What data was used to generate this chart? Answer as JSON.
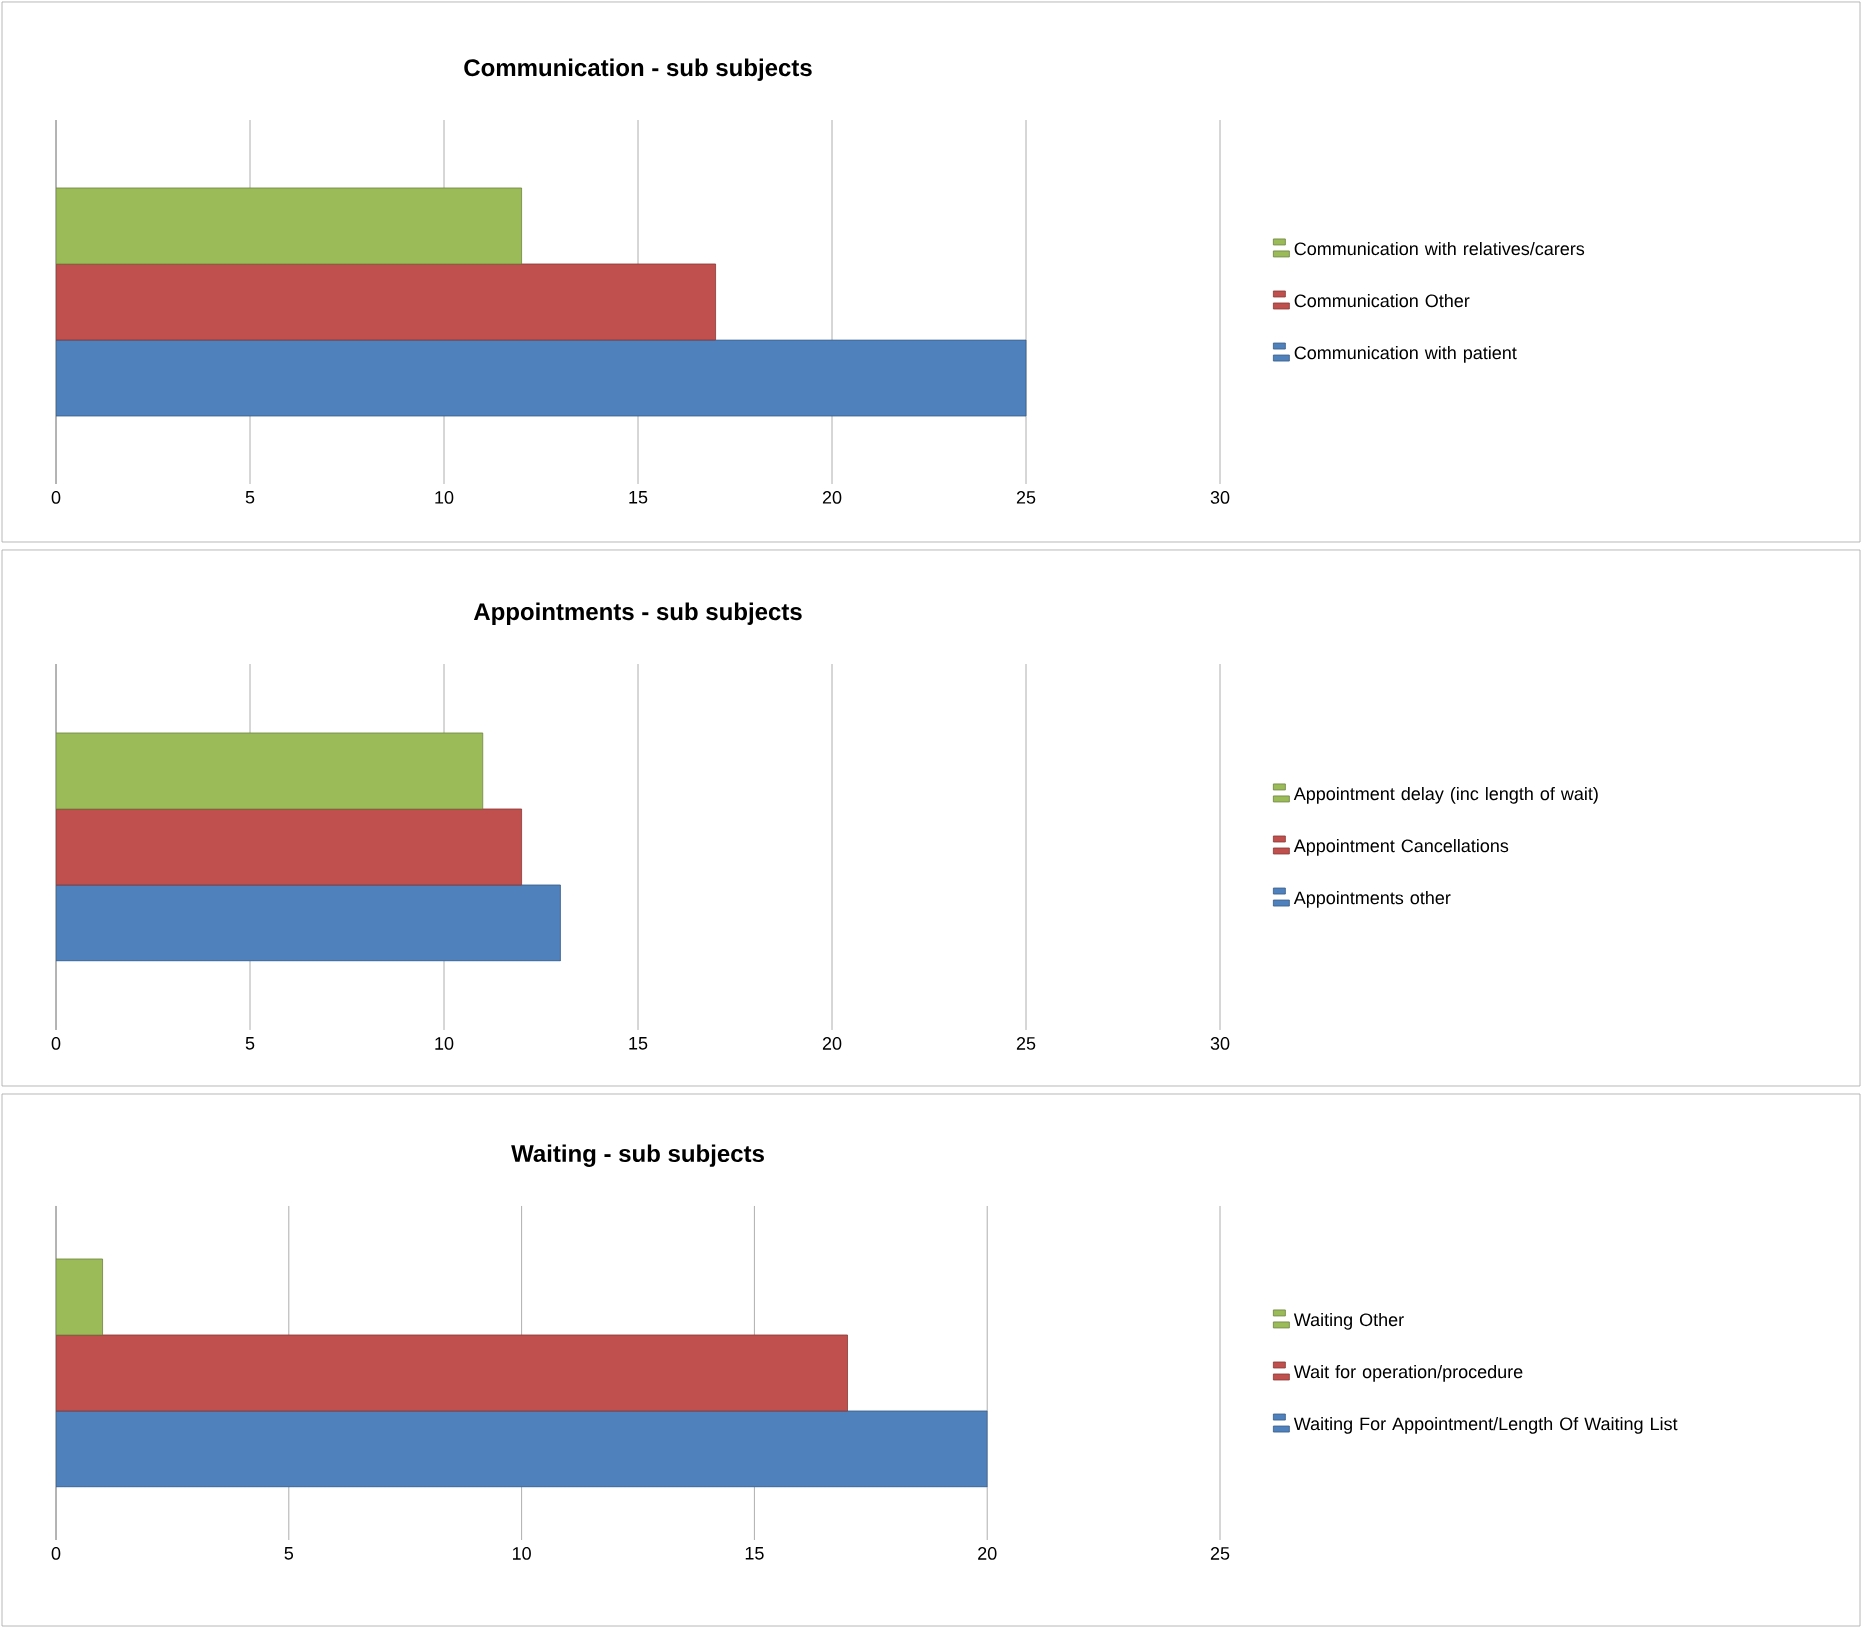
{
  "chart_data": [
    {
      "type": "bar",
      "orientation": "horizontal",
      "title": "Communication - sub subjects",
      "categories": [
        null
      ],
      "series": [
        {
          "name": "Communication with patient",
          "color": "#4f81bd",
          "values": [
            25
          ]
        },
        {
          "name": "Communication Other",
          "color": "#c0504d",
          "values": [
            17
          ]
        },
        {
          "name": "Communication with relatives/carers",
          "color": "#9bbb59",
          "values": [
            12
          ]
        }
      ],
      "xlim": [
        0,
        30
      ],
      "xticks": [
        0,
        5,
        10,
        15,
        20,
        25,
        30
      ],
      "grid": "x",
      "legend": "right"
    },
    {
      "type": "bar",
      "orientation": "horizontal",
      "title": "Appointments - sub subjects",
      "categories": [
        null
      ],
      "series": [
        {
          "name": "Appointments other",
          "color": "#4f81bd",
          "values": [
            13
          ]
        },
        {
          "name": "Appointment Cancellations",
          "color": "#c0504d",
          "values": [
            12
          ]
        },
        {
          "name": "Appointment delay (inc length of wait)",
          "color": "#9bbb59",
          "values": [
            11
          ]
        }
      ],
      "xlim": [
        0,
        30
      ],
      "xticks": [
        0,
        5,
        10,
        15,
        20,
        25,
        30
      ],
      "grid": "x",
      "legend": "right"
    },
    {
      "type": "bar",
      "orientation": "horizontal",
      "title": "Waiting - sub subjects",
      "categories": [
        null
      ],
      "series": [
        {
          "name": "Waiting For Appointment/Length Of Waiting List",
          "color": "#4f81bd",
          "values": [
            20
          ]
        },
        {
          "name": "Wait for operation/procedure",
          "color": "#c0504d",
          "values": [
            17
          ]
        },
        {
          "name": "Waiting Other",
          "color": "#9bbb59",
          "values": [
            1
          ]
        }
      ],
      "xlim": [
        0,
        25
      ],
      "xticks": [
        0,
        5,
        10,
        15,
        20,
        25
      ],
      "grid": "x",
      "legend": "right"
    }
  ]
}
